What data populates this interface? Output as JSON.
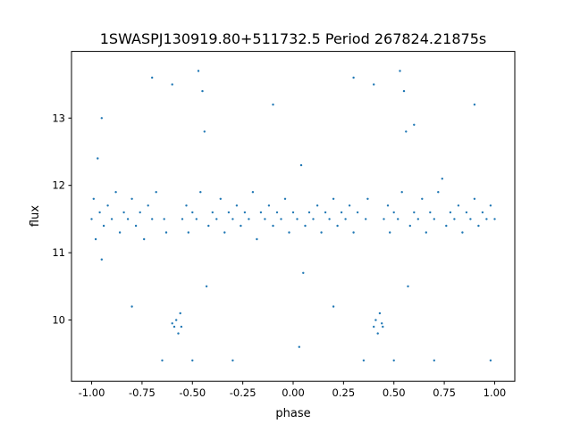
{
  "chart_data": {
    "type": "scatter",
    "title": "1SWASPJ130919.80+511732.5 Period 267824.21875s",
    "xlabel": "phase",
    "ylabel": "flux",
    "xlim": [
      -1.1,
      1.1
    ],
    "ylim": [
      9.09,
      13.99
    ],
    "xticks": [
      "-1.00",
      "-0.75",
      "-0.50",
      "-0.25",
      "0.00",
      "0.25",
      "0.50",
      "0.75",
      "1.00"
    ],
    "xtick_values": [
      -1,
      -0.75,
      -0.5,
      -0.25,
      0,
      0.25,
      0.5,
      0.75,
      1
    ],
    "yticks": [
      "10",
      "11",
      "12",
      "13"
    ],
    "ytick_values": [
      10,
      11,
      12,
      13
    ],
    "grid": false,
    "point_color": "#1f77b4",
    "points": [
      [
        -1.0,
        11.5
      ],
      [
        -0.99,
        11.8
      ],
      [
        -0.98,
        11.2
      ],
      [
        -0.97,
        12.4
      ],
      [
        -0.96,
        11.6
      ],
      [
        -0.95,
        10.9
      ],
      [
        -0.94,
        11.4
      ],
      [
        -0.92,
        11.7
      ],
      [
        -0.9,
        11.5
      ],
      [
        -0.88,
        11.9
      ],
      [
        -0.86,
        11.3
      ],
      [
        -0.84,
        11.6
      ],
      [
        -0.82,
        11.5
      ],
      [
        -0.8,
        11.8
      ],
      [
        -0.78,
        11.4
      ],
      [
        -0.76,
        11.6
      ],
      [
        -0.74,
        11.2
      ],
      [
        -0.72,
        11.7
      ],
      [
        -0.7,
        11.5
      ],
      [
        -0.68,
        11.9
      ],
      [
        -0.64,
        11.5
      ],
      [
        -0.63,
        11.3
      ],
      [
        -0.59,
        9.9
      ],
      [
        -0.58,
        10.0
      ],
      [
        -0.57,
        9.8
      ],
      [
        -0.56,
        10.1
      ],
      [
        -0.6,
        9.95
      ],
      [
        -0.555,
        9.9
      ],
      [
        -0.55,
        11.5
      ],
      [
        -0.53,
        11.7
      ],
      [
        -0.52,
        11.3
      ],
      [
        -0.5,
        11.6
      ],
      [
        -0.48,
        11.5
      ],
      [
        -0.46,
        11.9
      ],
      [
        -0.45,
        13.4
      ],
      [
        -0.44,
        12.8
      ],
      [
        -0.43,
        10.5
      ],
      [
        -0.42,
        11.4
      ],
      [
        -0.4,
        11.6
      ],
      [
        -0.38,
        11.5
      ],
      [
        -0.36,
        11.8
      ],
      [
        -0.34,
        11.3
      ],
      [
        -0.32,
        11.6
      ],
      [
        -0.3,
        11.5
      ],
      [
        -0.28,
        11.7
      ],
      [
        -0.26,
        11.4
      ],
      [
        -0.24,
        11.6
      ],
      [
        -0.22,
        11.5
      ],
      [
        -0.2,
        11.9
      ],
      [
        -0.18,
        11.2
      ],
      [
        -0.16,
        11.6
      ],
      [
        -0.14,
        11.5
      ],
      [
        -0.12,
        11.7
      ],
      [
        -0.1,
        11.4
      ],
      [
        -0.08,
        11.6
      ],
      [
        -0.06,
        11.5
      ],
      [
        -0.04,
        11.8
      ],
      [
        -0.02,
        11.3
      ],
      [
        0.0,
        11.6
      ],
      [
        0.02,
        11.5
      ],
      [
        0.04,
        12.3
      ],
      [
        0.05,
        10.7
      ],
      [
        0.06,
        11.4
      ],
      [
        0.08,
        11.6
      ],
      [
        0.1,
        11.5
      ],
      [
        0.12,
        11.7
      ],
      [
        0.14,
        11.3
      ],
      [
        0.16,
        11.6
      ],
      [
        0.18,
        11.5
      ],
      [
        0.2,
        11.8
      ],
      [
        0.22,
        11.4
      ],
      [
        0.24,
        11.6
      ],
      [
        0.26,
        11.5
      ],
      [
        0.28,
        11.7
      ],
      [
        0.3,
        11.3
      ],
      [
        0.32,
        11.6
      ],
      [
        0.36,
        11.5
      ],
      [
        0.37,
        11.8
      ],
      [
        0.4,
        9.9
      ],
      [
        0.41,
        10.0
      ],
      [
        0.42,
        9.8
      ],
      [
        0.43,
        10.1
      ],
      [
        0.44,
        9.95
      ],
      [
        0.445,
        9.9
      ],
      [
        0.45,
        11.5
      ],
      [
        0.47,
        11.7
      ],
      [
        0.48,
        11.3
      ],
      [
        0.5,
        11.6
      ],
      [
        0.52,
        11.5
      ],
      [
        0.54,
        11.9
      ],
      [
        0.55,
        13.4
      ],
      [
        0.56,
        12.8
      ],
      [
        0.57,
        10.5
      ],
      [
        0.58,
        11.4
      ],
      [
        0.6,
        11.6
      ],
      [
        0.62,
        11.5
      ],
      [
        0.64,
        11.8
      ],
      [
        0.66,
        11.3
      ],
      [
        0.68,
        11.6
      ],
      [
        0.7,
        11.5
      ],
      [
        0.72,
        11.9
      ],
      [
        0.74,
        12.1
      ],
      [
        0.76,
        11.4
      ],
      [
        0.78,
        11.6
      ],
      [
        0.8,
        11.5
      ],
      [
        0.82,
        11.7
      ],
      [
        0.84,
        11.3
      ],
      [
        0.86,
        11.6
      ],
      [
        0.88,
        11.5
      ],
      [
        0.9,
        11.8
      ],
      [
        0.92,
        11.4
      ],
      [
        0.94,
        11.6
      ],
      [
        0.96,
        11.5
      ],
      [
        0.98,
        11.7
      ],
      [
        1.0,
        11.5
      ],
      [
        -0.95,
        13.0
      ],
      [
        -0.7,
        13.6
      ],
      [
        -0.65,
        9.4
      ],
      [
        -0.6,
        13.5
      ],
      [
        -0.5,
        9.4
      ],
      [
        -0.47,
        13.7
      ],
      [
        -0.3,
        9.4
      ],
      [
        -0.1,
        13.2
      ],
      [
        0.03,
        9.6
      ],
      [
        0.3,
        13.6
      ],
      [
        0.35,
        9.4
      ],
      [
        0.4,
        13.5
      ],
      [
        0.5,
        9.4
      ],
      [
        0.53,
        13.7
      ],
      [
        0.7,
        9.4
      ],
      [
        0.9,
        13.2
      ],
      [
        0.98,
        9.4
      ],
      [
        -0.8,
        10.2
      ],
      [
        0.2,
        10.2
      ],
      [
        0.6,
        12.9
      ]
    ]
  }
}
